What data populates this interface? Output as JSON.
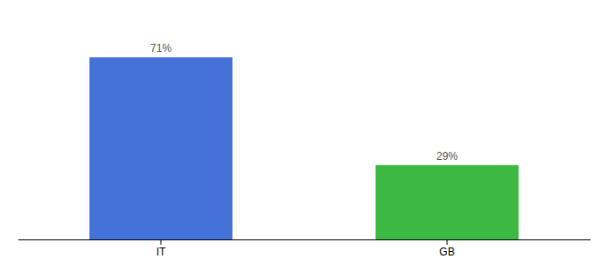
{
  "chart_data": {
    "type": "bar",
    "categories": [
      "IT",
      "GB"
    ],
    "values": [
      71,
      29
    ],
    "value_labels": [
      "71%",
      "29%"
    ],
    "colors": [
      "#4472D9",
      "#3CB843"
    ],
    "ylim": [
      0,
      85
    ],
    "data_labels": true,
    "tick_labels": "x"
  }
}
